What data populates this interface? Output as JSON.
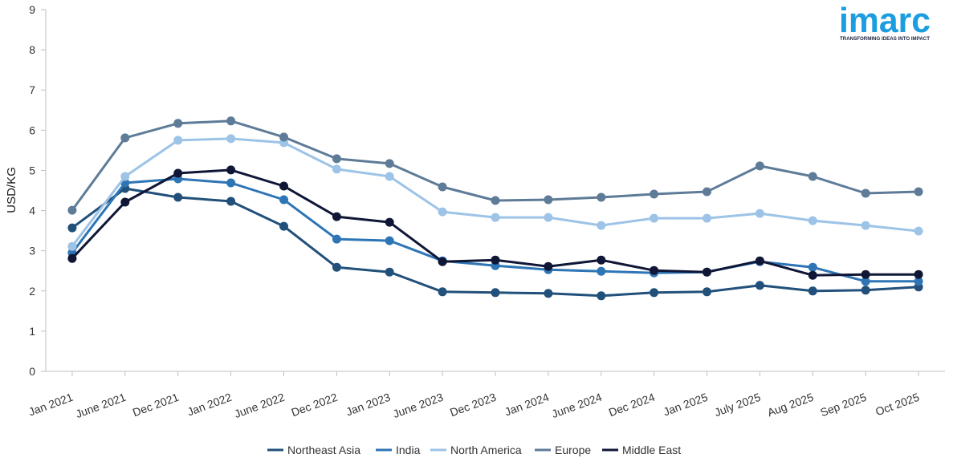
{
  "logo": {
    "name": "imarc",
    "tagline": "TRANSFORMING IDEAS INTO IMPACT",
    "color": "#1b9de0"
  },
  "chart_data": {
    "type": "line",
    "ylabel": "USD/KG",
    "ylim": [
      0,
      9
    ],
    "yticks": [
      "0",
      "1",
      "2",
      "3",
      "4",
      "5",
      "6",
      "7",
      "8",
      "9"
    ],
    "grid": false,
    "legend_position": "bottom",
    "categories": [
      "Jan 2021",
      "June 2021",
      "Dec 2021",
      "Jan 2022",
      "June 2022",
      "Dec 2022",
      "Jan 2023",
      "June 2023",
      "Dec 2023",
      "Jan 2024",
      "June 2024",
      "Dec 2024",
      "Jan 2025",
      "July 2025",
      "Aug 2025",
      "Sep 2025",
      "Oct 2025"
    ],
    "series": [
      {
        "name": "Northeast Asia",
        "color": "#21507a",
        "values": [
          3.57,
          4.55,
          4.33,
          4.23,
          3.61,
          2.59,
          2.47,
          1.98,
          1.96,
          1.94,
          1.88,
          1.96,
          1.98,
          2.14,
          2.0,
          2.02,
          2.1
        ]
      },
      {
        "name": "India",
        "color": "#2e75b6",
        "values": [
          2.95,
          4.69,
          4.79,
          4.69,
          4.27,
          3.29,
          3.25,
          2.75,
          2.63,
          2.53,
          2.49,
          2.45,
          2.47,
          2.73,
          2.59,
          2.24,
          2.24
        ]
      },
      {
        "name": "North America",
        "color": "#9dc3e6",
        "values": [
          3.11,
          4.85,
          5.75,
          5.79,
          5.69,
          5.03,
          4.85,
          3.97,
          3.83,
          3.83,
          3.63,
          3.81,
          3.81,
          3.93,
          3.75,
          3.63,
          3.49
        ]
      },
      {
        "name": "Europe",
        "color": "#5e7b98",
        "values": [
          4.01,
          5.81,
          6.17,
          6.23,
          5.83,
          5.29,
          5.17,
          4.59,
          4.25,
          4.27,
          4.33,
          4.41,
          4.47,
          5.11,
          4.85,
          4.43,
          4.47
        ]
      },
      {
        "name": "Middle East",
        "color": "#101636",
        "values": [
          2.81,
          4.21,
          4.93,
          5.01,
          4.61,
          3.85,
          3.71,
          2.73,
          2.77,
          2.61,
          2.77,
          2.51,
          2.47,
          2.75,
          2.39,
          2.41,
          2.41
        ]
      }
    ]
  }
}
